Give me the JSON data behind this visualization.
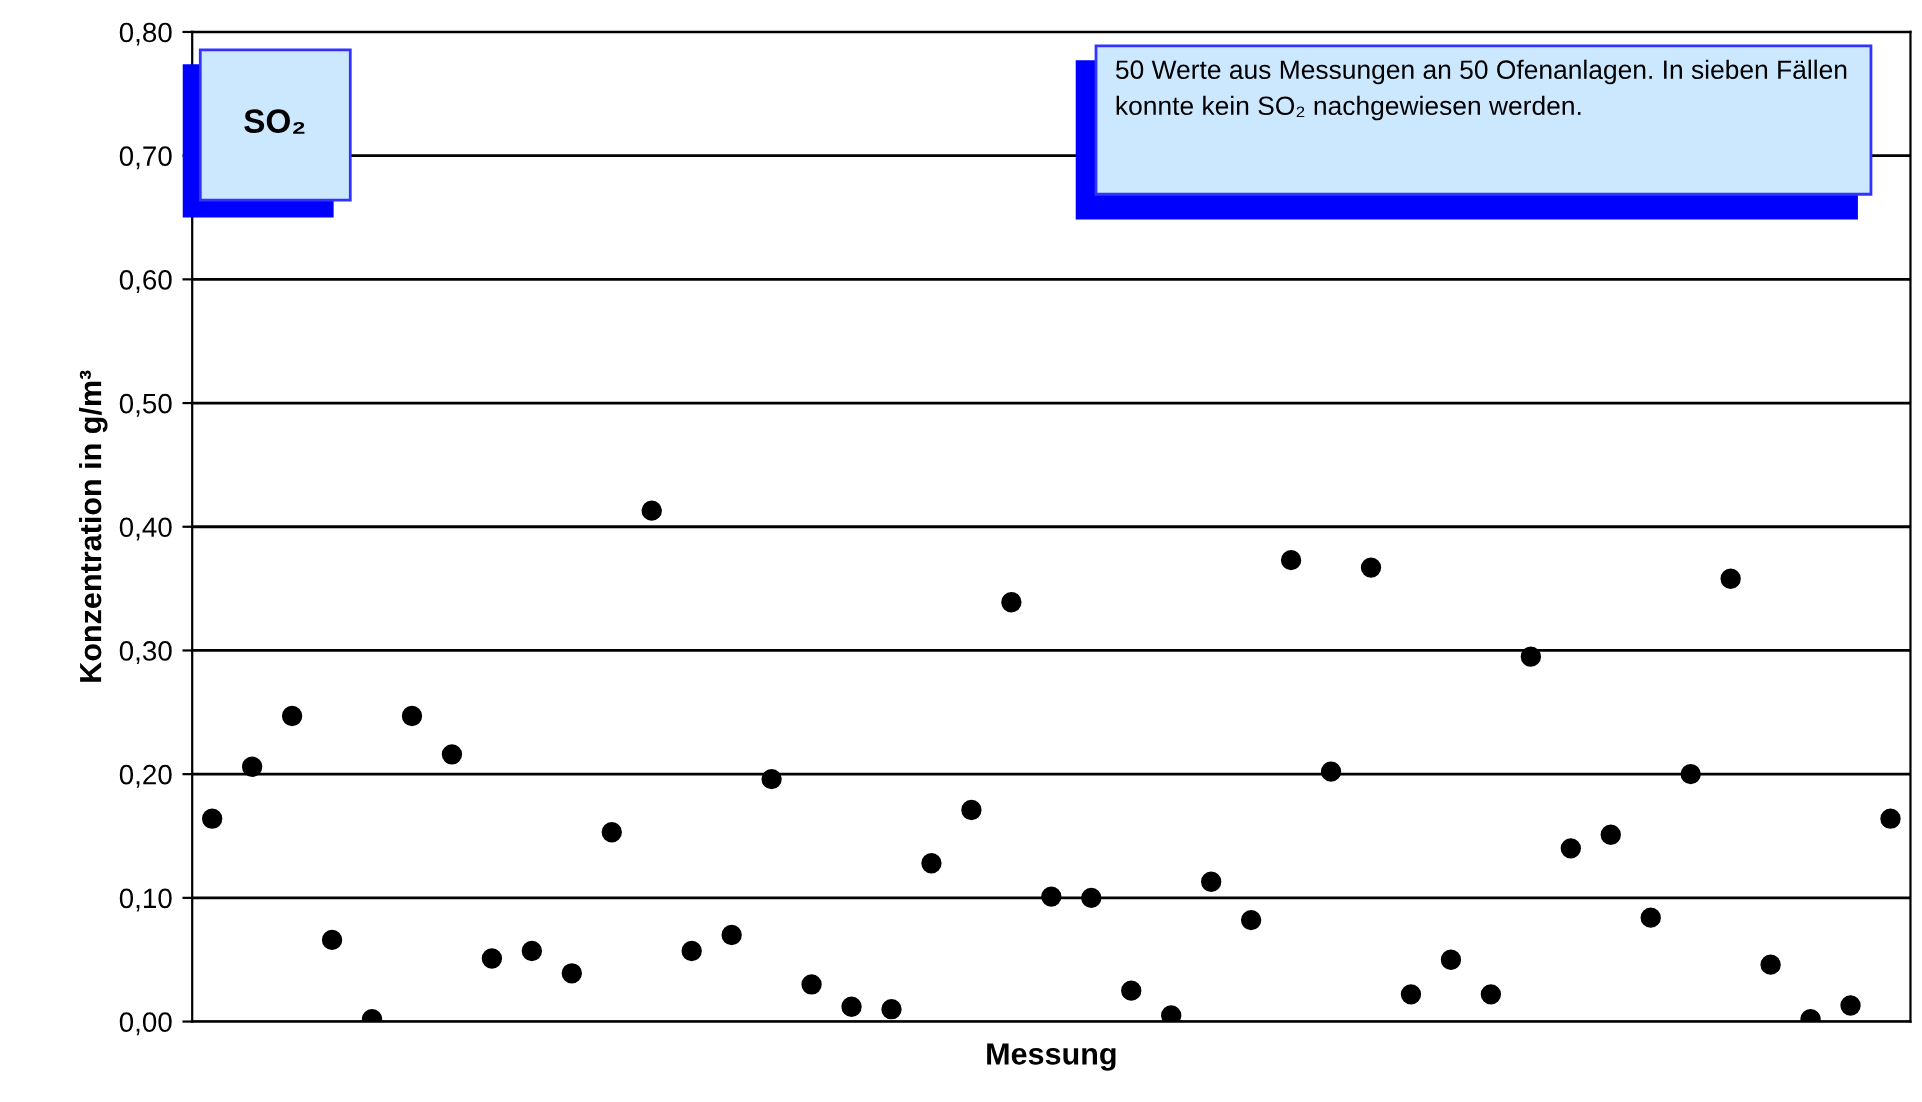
{
  "chart_data": {
    "type": "scatter",
    "title": "SO₂",
    "xlabel": "Messung",
    "ylabel": "Konzentration in g/m³",
    "annotations": [
      "50 Werte aus Messungen an 50 Ofenanlagen. In sieben Fällen konnte kein SO₂ nachgewiesen werden."
    ],
    "categories": [
      null,
      null,
      null,
      null,
      null,
      null,
      null,
      null,
      null,
      null,
      null,
      null,
      null,
      null,
      null,
      null,
      null,
      null,
      null,
      null,
      null,
      null,
      null,
      null,
      null,
      null,
      null,
      null,
      null,
      null,
      null,
      null,
      null,
      null,
      null,
      null,
      null,
      null,
      null,
      null,
      null,
      null,
      null
    ],
    "series": [
      {
        "color": "#000000",
        "values": [
          0.164,
          0.206,
          0.247,
          0.066,
          0.002,
          0.247,
          0.216,
          0.051,
          0.057,
          0.039,
          0.153,
          0.413,
          0.057,
          0.07,
          0.196,
          0.03,
          0.012,
          0.01,
          0.128,
          0.171,
          0.339,
          0.101,
          0.1,
          0.025,
          0.005,
          0.113,
          0.082,
          0.373,
          0.202,
          0.367,
          0.022,
          0.05,
          0.022,
          0.295,
          0.14,
          0.151,
          0.084,
          0.2,
          0.358,
          0.046,
          0.002,
          0.013,
          0.164
        ]
      }
    ],
    "ylim": [
      0,
      0.8
    ],
    "yticks": [
      {
        "value": 0,
        "label": "0,00"
      },
      {
        "value": 0.1,
        "label": "0,10"
      },
      {
        "value": 0.2,
        "label": "0,20"
      },
      {
        "value": 0.3,
        "label": "0,30"
      },
      {
        "value": 0.4,
        "label": "0,40"
      },
      {
        "value": 0.5,
        "label": "0,50"
      },
      {
        "value": 0.6,
        "label": "0,60"
      },
      {
        "value": 0.7,
        "label": "0,70"
      },
      {
        "value": 0.8,
        "label": "0,80"
      }
    ],
    "grid": "y",
    "marker": "circle",
    "legend": false
  }
}
